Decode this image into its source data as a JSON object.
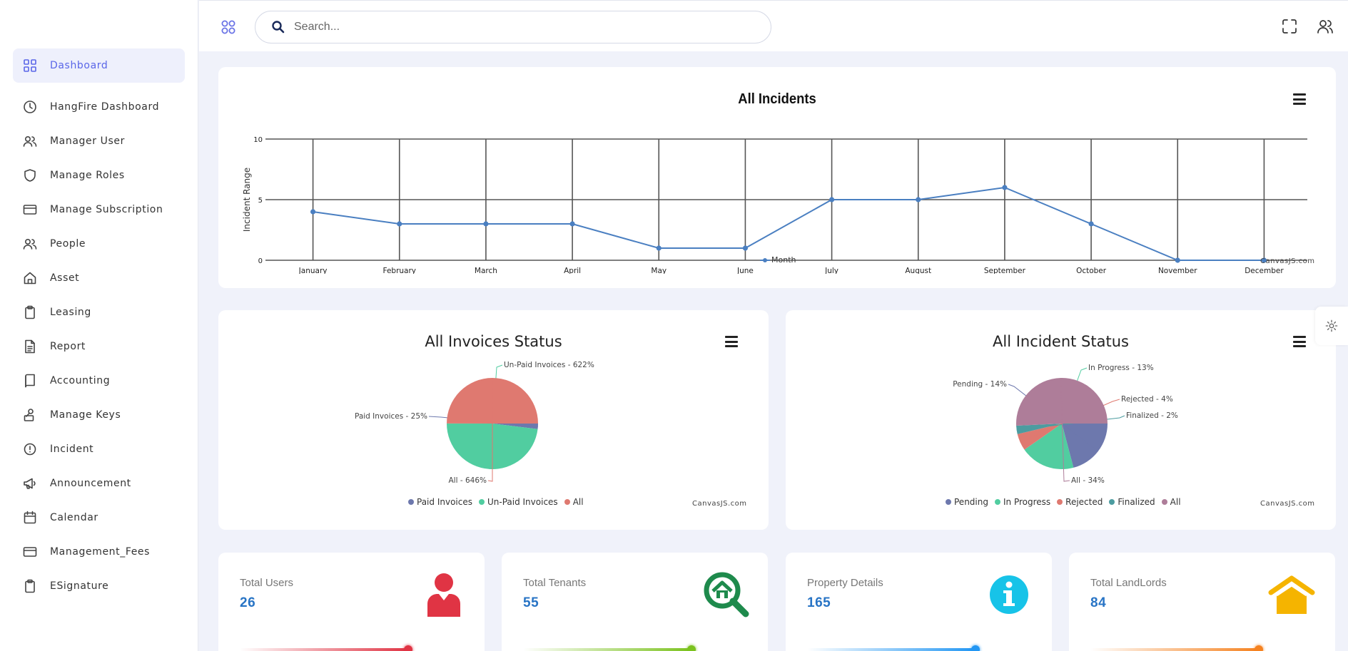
{
  "sidebar": {
    "items": [
      {
        "label": "Dashboard",
        "active": true,
        "icon": "grid-icon"
      },
      {
        "label": "HangFire Dashboard",
        "icon": "clock-icon"
      },
      {
        "label": "Manager User",
        "icon": "users-icon"
      },
      {
        "label": "Manage Roles",
        "icon": "shield-icon"
      },
      {
        "label": "Manage Subscription",
        "icon": "credit-card-icon"
      },
      {
        "label": "People",
        "icon": "people-icon"
      },
      {
        "label": "Asset",
        "icon": "home-icon"
      },
      {
        "label": "Leasing",
        "icon": "clipboard-icon"
      },
      {
        "label": "Report",
        "icon": "file-text-icon"
      },
      {
        "label": "Accounting",
        "icon": "book-icon"
      },
      {
        "label": "Manage Keys",
        "icon": "key-icon"
      },
      {
        "label": "Incident",
        "icon": "alert-circle-icon"
      },
      {
        "label": "Announcement",
        "icon": "megaphone-icon"
      },
      {
        "label": "Calendar",
        "icon": "calendar-icon"
      },
      {
        "label": "Management_Fees",
        "icon": "credit-card-icon"
      },
      {
        "label": "ESignature",
        "icon": "clipboard-icon"
      }
    ]
  },
  "header": {
    "search_placeholder": "Search...",
    "search_value": ""
  },
  "colors": {
    "accent": "#5a66e8",
    "line": "#4a7fc1",
    "pending": "#6d78ad",
    "in_progress": "#51cda0",
    "rejected": "#df7970",
    "finalized": "#4c9ca0",
    "all": "#ae7d99",
    "value_blue": "#2874c5"
  },
  "chart_data": [
    {
      "type": "line",
      "title": "All Incidents",
      "ylabel": "Incident Range",
      "xlabel": "",
      "categories": [
        "January",
        "February",
        "March",
        "April",
        "May",
        "June",
        "July",
        "August",
        "September",
        "October",
        "November",
        "December"
      ],
      "series": [
        {
          "name": "Month",
          "values": [
            4,
            3,
            3,
            3,
            1,
            1,
            5,
            5,
            6,
            3,
            0,
            0
          ]
        }
      ],
      "ylim": [
        0,
        10
      ],
      "yticks": [
        "0",
        "5",
        "10"
      ],
      "grid": true,
      "legend": "bottom",
      "credit": "CanvasJS.com"
    },
    {
      "type": "pie",
      "title": "All Invoices Status",
      "labels": [
        "Paid Invoices",
        "Un-Paid Invoices",
        "All"
      ],
      "values": [
        25,
        622,
        646
      ],
      "slice_labels": [
        "Paid Invoices - 25%",
        "Un-Paid Invoices - 622%",
        "All - 646%"
      ],
      "legend": "bottom",
      "credit": "CanvasJS.com"
    },
    {
      "type": "pie",
      "title": "All Incident Status",
      "labels": [
        "Pending",
        "In Progress",
        "Rejected",
        "Finalized",
        "All"
      ],
      "values": [
        14,
        13,
        4,
        2,
        34
      ],
      "slice_labels": [
        "Pending - 14%",
        "In Progress - 13%",
        "Rejected - 4%",
        "Finalized - 2%",
        "All - 34%"
      ],
      "legend": "bottom",
      "credit": "CanvasJS.com"
    }
  ],
  "stats": [
    {
      "label": "Total Users",
      "value": "26",
      "icon": "user-icon",
      "color": "#e03444"
    },
    {
      "label": "Total Tenants",
      "value": "55",
      "icon": "home-search-icon",
      "color": "#1e8a4c"
    },
    {
      "label": "Property Details",
      "value": "165",
      "icon": "info-icon",
      "color": "#17c3e8"
    },
    {
      "label": "Total LandLords",
      "value": "84",
      "icon": "house-roof-icon",
      "color": "#f5b400"
    }
  ]
}
